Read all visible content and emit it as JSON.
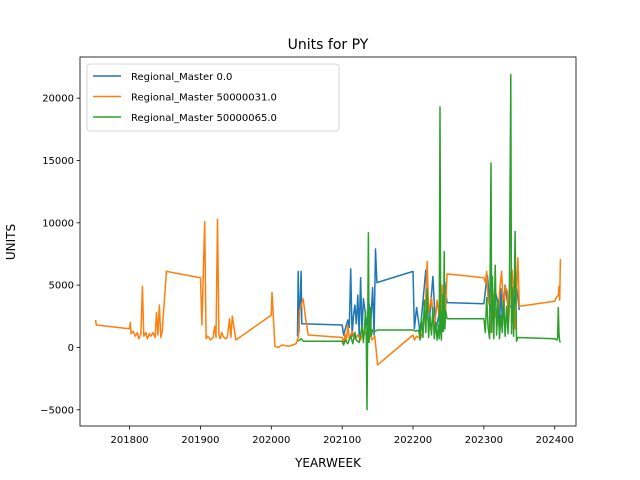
{
  "chart_data": {
    "type": "line",
    "title": "Units for PY",
    "xlabel": "YEARWEEK",
    "ylabel": "UNITS",
    "xlim": [
      201730,
      202430
    ],
    "ylim": [
      -6300,
      23300
    ],
    "xticks": [
      201800,
      201900,
      202000,
      202100,
      202200,
      202300,
      202400
    ],
    "yticks": [
      -5000,
      0,
      5000,
      10000,
      15000,
      20000
    ],
    "grid": false,
    "legend_position": "top-left",
    "series": [
      {
        "name": "Regional_Master 0.0",
        "color": "#1f77b4",
        "points": [
          [
            202037,
            900
          ],
          [
            202038,
            6100
          ],
          [
            202039,
            1200
          ],
          [
            202042,
            6100
          ],
          [
            202043,
            1900
          ],
          [
            202100,
            1800
          ],
          [
            202102,
            1000
          ],
          [
            202108,
            2200
          ],
          [
            202110,
            1600
          ],
          [
            202112,
            6300
          ],
          [
            202114,
            900
          ],
          [
            202116,
            2600
          ],
          [
            202118,
            3400
          ],
          [
            202120,
            1900
          ],
          [
            202122,
            4200
          ],
          [
            202124,
            1000
          ],
          [
            202126,
            5600
          ],
          [
            202128,
            1200
          ],
          [
            202130,
            3900
          ],
          [
            202135,
            1800
          ],
          [
            202138,
            3500
          ],
          [
            202140,
            1400
          ],
          [
            202143,
            4800
          ],
          [
            202145,
            1000
          ],
          [
            202147,
            7900
          ],
          [
            202149,
            5200
          ],
          [
            202200,
            6100
          ],
          [
            202202,
            1500
          ],
          [
            202205,
            3200
          ],
          [
            202210,
            1200
          ],
          [
            202218,
            6200
          ],
          [
            202222,
            1300
          ],
          [
            202228,
            5700
          ],
          [
            202232,
            1400
          ],
          [
            202238,
            3000
          ],
          [
            202242,
            1300
          ],
          [
            202245,
            5200
          ],
          [
            202248,
            3600
          ],
          [
            202300,
            3500
          ],
          [
            202303,
            5000
          ],
          [
            202305,
            5800
          ],
          [
            202308,
            3700
          ],
          [
            202312,
            2300
          ],
          [
            202316,
            4500
          ],
          [
            202320,
            3600
          ],
          [
            202322,
            1800
          ],
          [
            202324,
            4700
          ],
          [
            202326,
            2300
          ],
          [
            202330,
            5000
          ],
          [
            202334,
            3300
          ],
          [
            202338,
            3300
          ],
          [
            202342,
            2600
          ],
          [
            202346,
            5000
          ],
          [
            202350,
            3000
          ]
        ]
      },
      {
        "name": "Regional_Master 50000031.0",
        "color": "#ff7f0e",
        "points": [
          [
            201752,
            2200
          ],
          [
            201753,
            1800
          ],
          [
            201800,
            1500
          ],
          [
            201801,
            2000
          ],
          [
            201802,
            1100
          ],
          [
            201805,
            1300
          ],
          [
            201808,
            900
          ],
          [
            201811,
            1200
          ],
          [
            201813,
            700
          ],
          [
            201816,
            1100
          ],
          [
            201818,
            4900
          ],
          [
            201820,
            900
          ],
          [
            201823,
            1200
          ],
          [
            201825,
            700
          ],
          [
            201828,
            1100
          ],
          [
            201830,
            900
          ],
          [
            201833,
            1200
          ],
          [
            201836,
            800
          ],
          [
            201838,
            2800
          ],
          [
            201840,
            1000
          ],
          [
            201842,
            3400
          ],
          [
            201844,
            800
          ],
          [
            201846,
            1300
          ],
          [
            201852,
            6100
          ],
          [
            201900,
            5600
          ],
          [
            201902,
            1800
          ],
          [
            201904,
            6000
          ],
          [
            201906,
            10100
          ],
          [
            201908,
            700
          ],
          [
            201910,
            900
          ],
          [
            201912,
            800
          ],
          [
            201914,
            600
          ],
          [
            201916,
            700
          ],
          [
            201918,
            800
          ],
          [
            201920,
            1700
          ],
          [
            201922,
            800
          ],
          [
            201924,
            10300
          ],
          [
            201926,
            1000
          ],
          [
            201928,
            700
          ],
          [
            201930,
            1200
          ],
          [
            201932,
            900
          ],
          [
            201935,
            700
          ],
          [
            201938,
            800
          ],
          [
            201941,
            2300
          ],
          [
            201943,
            800
          ],
          [
            201945,
            2500
          ],
          [
            201950,
            600
          ],
          [
            202000,
            2600
          ],
          [
            202001,
            4400
          ],
          [
            202002,
            3500
          ],
          [
            202005,
            100
          ],
          [
            202010,
            0
          ],
          [
            202015,
            200
          ],
          [
            202020,
            150
          ],
          [
            202025,
            100
          ],
          [
            202030,
            200
          ],
          [
            202035,
            300
          ],
          [
            202038,
            800
          ],
          [
            202040,
            3000
          ],
          [
            202045,
            3900
          ],
          [
            202048,
            2500
          ],
          [
            202052,
            1000
          ],
          [
            202100,
            800
          ],
          [
            202102,
            300
          ],
          [
            202104,
            1100
          ],
          [
            202106,
            500
          ],
          [
            202108,
            1800
          ],
          [
            202110,
            700
          ],
          [
            202114,
            1300
          ],
          [
            202118,
            700
          ],
          [
            202122,
            1000
          ],
          [
            202126,
            600
          ],
          [
            202130,
            1300
          ],
          [
            202135,
            900
          ],
          [
            202138,
            1300
          ],
          [
            202142,
            600
          ],
          [
            202146,
            900
          ],
          [
            202150,
            -1400
          ],
          [
            202200,
            1000
          ],
          [
            202202,
            600
          ],
          [
            202205,
            900
          ],
          [
            202210,
            700
          ],
          [
            202214,
            1200
          ],
          [
            202218,
            4000
          ],
          [
            202220,
            6900
          ],
          [
            202222,
            2800
          ],
          [
            202226,
            4000
          ],
          [
            202230,
            1300
          ],
          [
            202234,
            3800
          ],
          [
            202238,
            2000
          ],
          [
            202241,
            5000
          ],
          [
            202243,
            2000
          ],
          [
            202246,
            3000
          ],
          [
            202248,
            5900
          ],
          [
            202300,
            5600
          ],
          [
            202302,
            5200
          ],
          [
            202304,
            6100
          ],
          [
            202306,
            3800
          ],
          [
            202308,
            3300
          ],
          [
            202310,
            1200
          ],
          [
            202313,
            4300
          ],
          [
            202316,
            2600
          ],
          [
            202320,
            1900
          ],
          [
            202322,
            4500
          ],
          [
            202325,
            6100
          ],
          [
            202328,
            2400
          ],
          [
            202330,
            4900
          ],
          [
            202333,
            4500
          ],
          [
            202335,
            2000
          ],
          [
            202338,
            6000
          ],
          [
            202340,
            6200
          ],
          [
            202344,
            1500
          ],
          [
            202348,
            7200
          ],
          [
            202350,
            3300
          ],
          [
            202400,
            3700
          ],
          [
            202402,
            4000
          ],
          [
            202405,
            4200
          ],
          [
            202406,
            4900
          ],
          [
            202407,
            3800
          ],
          [
            202408,
            7100
          ]
        ]
      },
      {
        "name": "Regional_Master 50000065.0",
        "color": "#2ca02c",
        "points": [
          [
            202038,
            500
          ],
          [
            202042,
            700
          ],
          [
            202045,
            500
          ],
          [
            202100,
            500
          ],
          [
            202102,
            200
          ],
          [
            202104,
            600
          ],
          [
            202108,
            300
          ],
          [
            202112,
            900
          ],
          [
            202115,
            300
          ],
          [
            202118,
            1200
          ],
          [
            202120,
            600
          ],
          [
            202124,
            400
          ],
          [
            202128,
            1700
          ],
          [
            202130,
            400
          ],
          [
            202133,
            2900
          ],
          [
            202134,
            700
          ],
          [
            202135,
            -5000
          ],
          [
            202136,
            1600
          ],
          [
            202137,
            9200
          ],
          [
            202138,
            400
          ],
          [
            202140,
            3200
          ],
          [
            202141,
            900
          ],
          [
            202143,
            1400
          ],
          [
            202146,
            1300
          ],
          [
            202150,
            1400
          ],
          [
            202200,
            1400
          ],
          [
            202204,
            1300
          ],
          [
            202208,
            1400
          ],
          [
            202210,
            600
          ],
          [
            202212,
            2400
          ],
          [
            202214,
            800
          ],
          [
            202216,
            3800
          ],
          [
            202218,
            1200
          ],
          [
            202220,
            4700
          ],
          [
            202222,
            800
          ],
          [
            202224,
            2500
          ],
          [
            202226,
            1000
          ],
          [
            202228,
            3200
          ],
          [
            202230,
            700
          ],
          [
            202232,
            2000
          ],
          [
            202234,
            600
          ],
          [
            202236,
            1800
          ],
          [
            202237,
            700
          ],
          [
            202238,
            19300
          ],
          [
            202239,
            1200
          ],
          [
            202240,
            600
          ],
          [
            202242,
            4200
          ],
          [
            202243,
            1300
          ],
          [
            202244,
            7700
          ],
          [
            202245,
            1500
          ],
          [
            202246,
            3000
          ],
          [
            202248,
            2300
          ],
          [
            202300,
            2300
          ],
          [
            202302,
            1200
          ],
          [
            202304,
            4000
          ],
          [
            202306,
            1600
          ],
          [
            202308,
            700
          ],
          [
            202310,
            14800
          ],
          [
            202311,
            1200
          ],
          [
            202312,
            5700
          ],
          [
            202314,
            700
          ],
          [
            202316,
            6600
          ],
          [
            202318,
            1000
          ],
          [
            202320,
            3800
          ],
          [
            202322,
            700
          ],
          [
            202324,
            2600
          ],
          [
            202326,
            1200
          ],
          [
            202328,
            3800
          ],
          [
            202330,
            900
          ],
          [
            202332,
            3300
          ],
          [
            202334,
            1100
          ],
          [
            202336,
            4800
          ],
          [
            202338,
            21900
          ],
          [
            202339,
            1100
          ],
          [
            202340,
            4800
          ],
          [
            202342,
            900
          ],
          [
            202344,
            9300
          ],
          [
            202346,
            500
          ],
          [
            202348,
            800
          ],
          [
            202400,
            700
          ],
          [
            202403,
            600
          ],
          [
            202404,
            700
          ],
          [
            202405,
            3200
          ],
          [
            202406,
            1100
          ],
          [
            202407,
            500
          ],
          [
            202408,
            400
          ]
        ]
      }
    ]
  }
}
